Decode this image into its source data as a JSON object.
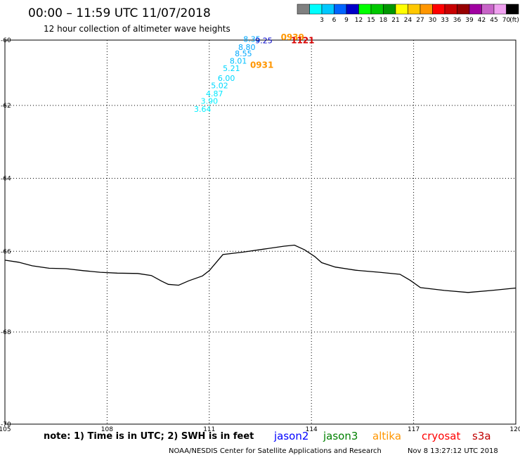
{
  "header": {
    "title": "00:00 – 11:59 UTC 11/07/2018",
    "subtitle": "12 hour collection of altimeter wave heights"
  },
  "legend": {
    "unit": "(ft)",
    "swatches": [
      {
        "label": "",
        "color": "#808080"
      },
      {
        "label": "3",
        "color": "#00ffff"
      },
      {
        "label": "6",
        "color": "#00c8ff"
      },
      {
        "label": "9",
        "color": "#0064ff"
      },
      {
        "label": "12",
        "color": "#0000c8"
      },
      {
        "label": "15",
        "color": "#00ff00"
      },
      {
        "label": "18",
        "color": "#00c800"
      },
      {
        "label": "21",
        "color": "#009600"
      },
      {
        "label": "24",
        "color": "#ffff00"
      },
      {
        "label": "27",
        "color": "#ffc800"
      },
      {
        "label": "30",
        "color": "#ff9600"
      },
      {
        "label": "33",
        "color": "#ff0000"
      },
      {
        "label": "36",
        "color": "#c80000"
      },
      {
        "label": "39",
        "color": "#960000"
      },
      {
        "label": "42",
        "color": "#a000a0"
      },
      {
        "label": "45",
        "color": "#c864c8"
      },
      {
        "label": "70",
        "color": "#f0a0f0"
      },
      {
        "label": "",
        "color": "#000000"
      }
    ]
  },
  "map": {
    "lon_range": [
      105,
      120
    ],
    "lat_range": [
      -60,
      -70
    ],
    "lat_ticks": [
      "-60",
      "-62",
      "-64",
      "-66",
      "-68",
      "-70"
    ],
    "lon_ticks": [
      "105",
      "108",
      "111",
      "114",
      "117",
      "120"
    ],
    "coastline": [
      [
        105.0,
        -66.22
      ],
      [
        105.4,
        -66.27
      ],
      [
        105.8,
        -66.36
      ],
      [
        106.3,
        -66.42
      ],
      [
        106.8,
        -66.43
      ],
      [
        107.3,
        -66.48
      ],
      [
        107.8,
        -66.52
      ],
      [
        108.3,
        -66.54
      ],
      [
        108.9,
        -66.55
      ],
      [
        109.3,
        -66.6
      ],
      [
        109.6,
        -66.74
      ],
      [
        109.8,
        -66.82
      ],
      [
        110.1,
        -66.84
      ],
      [
        110.4,
        -66.73
      ],
      [
        110.8,
        -66.61
      ],
      [
        111.0,
        -66.48
      ],
      [
        111.4,
        -66.08
      ],
      [
        112.0,
        -66.02
      ],
      [
        112.6,
        -65.94
      ],
      [
        113.2,
        -65.86
      ],
      [
        113.5,
        -65.83
      ],
      [
        113.8,
        -65.96
      ],
      [
        114.1,
        -66.13
      ],
      [
        114.3,
        -66.28
      ],
      [
        114.7,
        -66.39
      ],
      [
        115.3,
        -66.47
      ],
      [
        116.0,
        -66.52
      ],
      [
        116.6,
        -66.57
      ],
      [
        116.9,
        -66.72
      ],
      [
        117.2,
        -66.9
      ],
      [
        117.9,
        -66.97
      ],
      [
        118.6,
        -67.02
      ],
      [
        119.3,
        -66.97
      ],
      [
        120.0,
        -66.91
      ]
    ],
    "tracks": [
      {
        "label_color": "#ff9600",
        "time_label": "0931",
        "label_lon": 112.2,
        "label_lat": -60.85
      },
      {
        "label_color": "#ff9600",
        "time_label": "0939",
        "label_lon": 113.1,
        "label_lat": -60.0
      },
      {
        "label_color": "#d80000",
        "time_label": "1121",
        "label_lon": 113.4,
        "label_lat": -60.1
      }
    ],
    "wave_points": [
      {
        "lon": 112.0,
        "lat": -60.05,
        "value": "8.35",
        "color": "#00a8ff"
      },
      {
        "lon": 112.35,
        "lat": -60.1,
        "value": "9.25",
        "color": "#0000c8"
      },
      {
        "lon": 111.85,
        "lat": -60.3,
        "value": "8.80",
        "color": "#00a8ff"
      },
      {
        "lon": 111.75,
        "lat": -60.5,
        "value": "8.55",
        "color": "#00a8ff"
      },
      {
        "lon": 111.6,
        "lat": -60.72,
        "value": "8.01",
        "color": "#00c0ff"
      },
      {
        "lon": 111.4,
        "lat": -60.95,
        "value": "5.21",
        "color": "#00d8ff"
      },
      {
        "lon": 111.25,
        "lat": -61.25,
        "value": "6.00",
        "color": "#00d8ff"
      },
      {
        "lon": 111.05,
        "lat": -61.48,
        "value": "5.02",
        "color": "#00d8ff"
      },
      {
        "lon": 110.9,
        "lat": -61.72,
        "value": "4.87",
        "color": "#00e8ff"
      },
      {
        "lon": 110.75,
        "lat": -61.95,
        "value": "3.90",
        "color": "#00f0ff"
      },
      {
        "lon": 110.55,
        "lat": -62.18,
        "value": "3.64",
        "color": "#00f0ff"
      }
    ]
  },
  "footer": {
    "note": "note:  1)  Time is in UTC;  2)  SWH is in feet",
    "satellites": [
      {
        "name": "jason2",
        "color": "#0000ff"
      },
      {
        "name": "jason3",
        "color": "#008000"
      },
      {
        "name": "altika",
        "color": "#ff9600"
      },
      {
        "name": "cryosat",
        "color": "#ff0000"
      },
      {
        "name": "s3a",
        "color": "#c00000"
      }
    ],
    "credit": "NOAA/NESDIS Center for Satellite Applications and Research",
    "timestamp": "Nov  8 13:27:12 UTC 2018"
  }
}
